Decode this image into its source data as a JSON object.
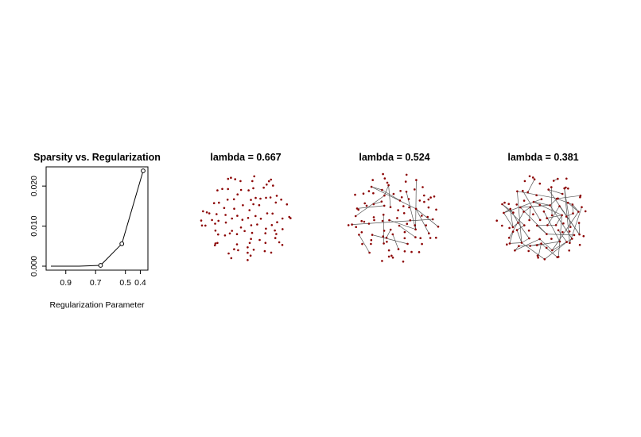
{
  "chart_data": [
    {
      "type": "line",
      "title": "Sparsity vs. Regularization",
      "xlabel": "Regularization Parameter",
      "ylabel": "",
      "x": [
        1.0,
        0.81,
        0.667,
        0.524,
        0.381
      ],
      "values": [
        0.0,
        0.0,
        0.0002,
        0.0056,
        0.0238
      ],
      "markers_on_index": [
        2,
        3,
        4
      ],
      "xticks": [
        "0.9",
        "0.7",
        "0.5",
        "0.4"
      ],
      "xtick_values": [
        0.9,
        0.7,
        0.5,
        0.4
      ],
      "yticks": [
        "0.000",
        "0.010",
        "0.020"
      ],
      "ytick_values": [
        0.0,
        0.01,
        0.02
      ],
      "xlim": [
        1.0,
        0.381
      ],
      "ylim": [
        0.0,
        0.0238
      ],
      "x_reversed": true,
      "grid": false
    },
    {
      "type": "network",
      "title": "lambda = 0.667",
      "nodes": 100,
      "edge_probability": 0.0,
      "seed": 11
    },
    {
      "type": "network",
      "title": "lambda = 0.524",
      "nodes": 100,
      "edge_probability": 0.006,
      "seed": 23
    },
    {
      "type": "network",
      "title": "lambda = 0.381",
      "nodes": 100,
      "edge_probability": 0.024,
      "seed": 37
    }
  ],
  "colors": {
    "node": "#8b0000",
    "edge": "#555555",
    "line": "#000000"
  }
}
